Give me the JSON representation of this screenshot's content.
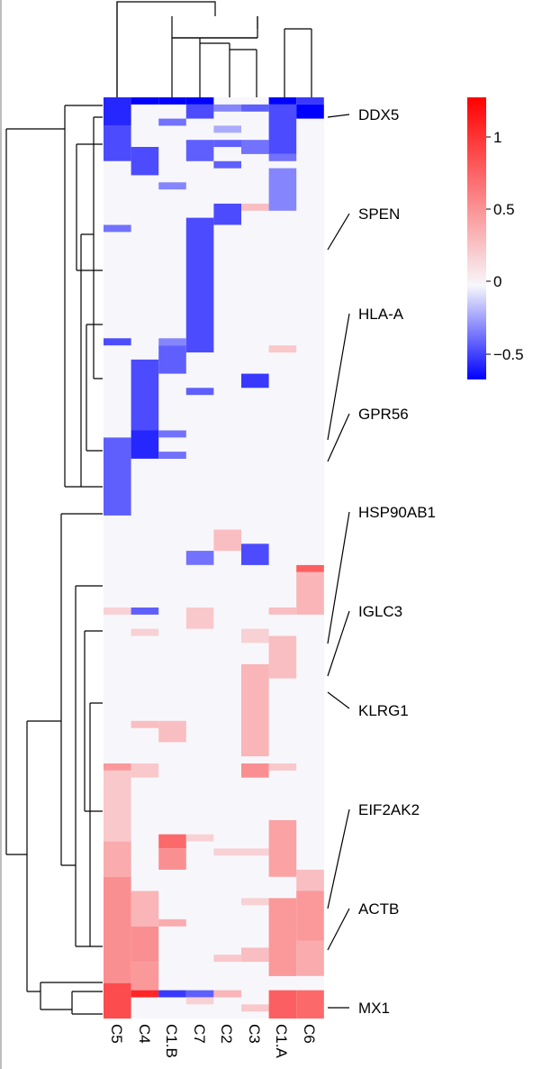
{
  "chart_data": {
    "type": "heatmap",
    "title": "",
    "xlabel": "",
    "ylabel": "",
    "columns": [
      "C5",
      "C4",
      "C1.B",
      "C7",
      "C2",
      "C3",
      "C1.A",
      "C6"
    ],
    "gene_labels": [
      "DDX5",
      "SPEN",
      "HLA-A",
      "GPR56",
      "HSP90AB1",
      "IGLC3",
      "KLRG1",
      "EIF2AK2",
      "ACTB",
      "MX1"
    ],
    "legend": {
      "placement": "top-right",
      "range": [
        -0.65,
        1.3
      ],
      "ticks": [
        1,
        0.5,
        0,
        -0.5
      ],
      "tick_labels": [
        "1",
        "0.5",
        "0",
        "−0.5"
      ],
      "low_color": "#0000ff",
      "mid_color": "#f7f7fb",
      "high_color": "#ff0000"
    },
    "row_count": 130,
    "blocks": [
      {
        "column": "C5",
        "rows": [
          0,
          4
        ],
        "value": -0.55
      },
      {
        "column": "C5",
        "rows": [
          4,
          9
        ],
        "value": -0.45
      },
      {
        "column": "C5",
        "rows": [
          18,
          19
        ],
        "value": -0.35
      },
      {
        "column": "C5",
        "rows": [
          34,
          35
        ],
        "value": -0.45
      },
      {
        "column": "C5",
        "rows": [
          48,
          59
        ],
        "value": -0.4
      },
      {
        "column": "C5",
        "rows": [
          72,
          73
        ],
        "value": 0.2
      },
      {
        "column": "C5",
        "rows": [
          94,
          95
        ],
        "value": 0.5
      },
      {
        "column": "C5",
        "rows": [
          95,
          105
        ],
        "value": 0.25
      },
      {
        "column": "C5",
        "rows": [
          105,
          110
        ],
        "value": 0.4
      },
      {
        "column": "C5",
        "rows": [
          110,
          125
        ],
        "value": 0.55
      },
      {
        "column": "C5",
        "rows": [
          125,
          130
        ],
        "value": 0.9
      },
      {
        "column": "C4",
        "rows": [
          0,
          1
        ],
        "value": -0.65
      },
      {
        "column": "C4",
        "rows": [
          7,
          11
        ],
        "value": -0.45
      },
      {
        "column": "C4",
        "rows": [
          37,
          47
        ],
        "value": -0.45
      },
      {
        "column": "C4",
        "rows": [
          47,
          51
        ],
        "value": -0.55
      },
      {
        "column": "C4",
        "rows": [
          72,
          73
        ],
        "value": -0.4
      },
      {
        "column": "C4",
        "rows": [
          75,
          76
        ],
        "value": 0.2
      },
      {
        "column": "C4",
        "rows": [
          88,
          89
        ],
        "value": 0.3
      },
      {
        "column": "C4",
        "rows": [
          94,
          96
        ],
        "value": 0.25
      },
      {
        "column": "C4",
        "rows": [
          112,
          117
        ],
        "value": 0.35
      },
      {
        "column": "C4",
        "rows": [
          117,
          122
        ],
        "value": 0.55
      },
      {
        "column": "C4",
        "rows": [
          122,
          126
        ],
        "value": 0.5
      },
      {
        "column": "C4",
        "rows": [
          126,
          127
        ],
        "value": 1.1
      },
      {
        "column": "C1.B",
        "rows": [
          0,
          1
        ],
        "value": -0.65
      },
      {
        "column": "C1.B",
        "rows": [
          3,
          4
        ],
        "value": -0.35
      },
      {
        "column": "C1.B",
        "rows": [
          12,
          13
        ],
        "value": -0.3
      },
      {
        "column": "C1.B",
        "rows": [
          34,
          35
        ],
        "value": -0.3
      },
      {
        "column": "C1.B",
        "rows": [
          35,
          39
        ],
        "value": -0.4
      },
      {
        "column": "C1.B",
        "rows": [
          47,
          48
        ],
        "value": -0.35
      },
      {
        "column": "C1.B",
        "rows": [
          50,
          51
        ],
        "value": -0.35
      },
      {
        "column": "C1.B",
        "rows": [
          88,
          91
        ],
        "value": 0.3
      },
      {
        "column": "C1.B",
        "rows": [
          104,
          106
        ],
        "value": 0.75
      },
      {
        "column": "C1.B",
        "rows": [
          106,
          109
        ],
        "value": 0.55
      },
      {
        "column": "C1.B",
        "rows": [
          116,
          117
        ],
        "value": 0.4
      },
      {
        "column": "C1.B",
        "rows": [
          126,
          127
        ],
        "value": -0.5
      },
      {
        "column": "C7",
        "rows": [
          0,
          1
        ],
        "value": -0.65
      },
      {
        "column": "C7",
        "rows": [
          1,
          3
        ],
        "value": -0.45
      },
      {
        "column": "C7",
        "rows": [
          6,
          9
        ],
        "value": -0.4
      },
      {
        "column": "C7",
        "rows": [
          17,
          36
        ],
        "value": -0.45
      },
      {
        "column": "C7",
        "rows": [
          41,
          42
        ],
        "value": -0.4
      },
      {
        "column": "C7",
        "rows": [
          64,
          66
        ],
        "value": -0.35
      },
      {
        "column": "C7",
        "rows": [
          72,
          75
        ],
        "value": 0.25
      },
      {
        "column": "C7",
        "rows": [
          104,
          105
        ],
        "value": 0.2
      },
      {
        "column": "C7",
        "rows": [
          126,
          127
        ],
        "value": -0.4
      },
      {
        "column": "C7",
        "rows": [
          127,
          128
        ],
        "value": 0.2
      },
      {
        "column": "C2",
        "rows": [
          1,
          2
        ],
        "value": -0.3
      },
      {
        "column": "C2",
        "rows": [
          4,
          5
        ],
        "value": -0.2
      },
      {
        "column": "C2",
        "rows": [
          6,
          7
        ],
        "value": -0.4
      },
      {
        "column": "C2",
        "rows": [
          9,
          10
        ],
        "value": -0.4
      },
      {
        "column": "C2",
        "rows": [
          15,
          18
        ],
        "value": -0.45
      },
      {
        "column": "C2",
        "rows": [
          61,
          64
        ],
        "value": 0.3
      },
      {
        "column": "C2",
        "rows": [
          106,
          107
        ],
        "value": 0.2
      },
      {
        "column": "C2",
        "rows": [
          121,
          122
        ],
        "value": 0.25
      },
      {
        "column": "C2",
        "rows": [
          126,
          127
        ],
        "value": 0.35
      },
      {
        "column": "C3",
        "rows": [
          1,
          2
        ],
        "value": -0.4
      },
      {
        "column": "C3",
        "rows": [
          6,
          8
        ],
        "value": -0.35
      },
      {
        "column": "C3",
        "rows": [
          15,
          16
        ],
        "value": 0.3
      },
      {
        "column": "C3",
        "rows": [
          39,
          41
        ],
        "value": -0.5
      },
      {
        "column": "C3",
        "rows": [
          63,
          66
        ],
        "value": -0.45
      },
      {
        "column": "C3",
        "rows": [
          75,
          77
        ],
        "value": 0.2
      },
      {
        "column": "C3",
        "rows": [
          80,
          93
        ],
        "value": 0.35
      },
      {
        "column": "C3",
        "rows": [
          94,
          96
        ],
        "value": 0.55
      },
      {
        "column": "C3",
        "rows": [
          106,
          107
        ],
        "value": 0.2
      },
      {
        "column": "C3",
        "rows": [
          113,
          114
        ],
        "value": 0.2
      },
      {
        "column": "C3",
        "rows": [
          120,
          122
        ],
        "value": 0.3
      },
      {
        "column": "C3",
        "rows": [
          128,
          129
        ],
        "value": 0.25
      },
      {
        "column": "C1.A",
        "rows": [
          0,
          1
        ],
        "value": -0.65
      },
      {
        "column": "C1.A",
        "rows": [
          1,
          8
        ],
        "value": -0.45
      },
      {
        "column": "C1.A",
        "rows": [
          8,
          9
        ],
        "value": -0.35
      },
      {
        "column": "C1.A",
        "rows": [
          10,
          16
        ],
        "value": -0.3
      },
      {
        "column": "C1.A",
        "rows": [
          35,
          36
        ],
        "value": 0.25
      },
      {
        "column": "C1.A",
        "rows": [
          72,
          73
        ],
        "value": 0.3
      },
      {
        "column": "C1.A",
        "rows": [
          76,
          82
        ],
        "value": 0.3
      },
      {
        "column": "C1.A",
        "rows": [
          94,
          95
        ],
        "value": 0.25
      },
      {
        "column": "C1.A",
        "rows": [
          102,
          110
        ],
        "value": 0.45
      },
      {
        "column": "C1.A",
        "rows": [
          113,
          124
        ],
        "value": 0.5
      },
      {
        "column": "C1.A",
        "rows": [
          126,
          130
        ],
        "value": 0.8
      },
      {
        "column": "C6",
        "rows": [
          0,
          1
        ],
        "value": -0.5
      },
      {
        "column": "C6",
        "rows": [
          1,
          3
        ],
        "value": -0.65
      },
      {
        "column": "C6",
        "rows": [
          66,
          67
        ],
        "value": 0.8
      },
      {
        "column": "C6",
        "rows": [
          67,
          73
        ],
        "value": 0.35
      },
      {
        "column": "C6",
        "rows": [
          109,
          112
        ],
        "value": 0.3
      },
      {
        "column": "C6",
        "rows": [
          112,
          119
        ],
        "value": 0.5
      },
      {
        "column": "C6",
        "rows": [
          119,
          124
        ],
        "value": 0.4
      },
      {
        "column": "C6",
        "rows": [
          126,
          130
        ],
        "value": 0.75
      }
    ]
  }
}
